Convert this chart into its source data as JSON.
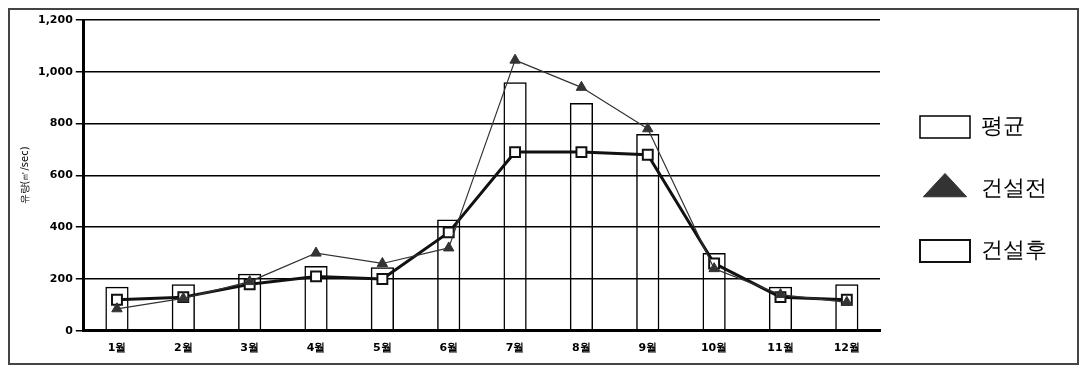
{
  "chart_data": {
    "type": "bar",
    "ylabel": "유량(㎥/sec)",
    "categories": [
      "1월",
      "2월",
      "3월",
      "4월",
      "5월",
      "6월",
      "7월",
      "8월",
      "9월",
      "10월",
      "11월",
      "12월"
    ],
    "series": [
      {
        "name": "평균",
        "color": "#000000",
        "values": [
          170,
          180,
          220,
          250,
          245,
          430,
          960,
          880,
          760,
          300,
          170,
          180
        ]
      },
      {
        "name": "건설전",
        "type": "line",
        "color": "#333333",
        "marker": "triangle",
        "values": [
          85,
          125,
          190,
          300,
          260,
          320,
          1045,
          940,
          780,
          240,
          140,
          110
        ]
      },
      {
        "name": "건설후",
        "type": "line",
        "color": "#111111",
        "marker": "square",
        "values": [
          120,
          130,
          180,
          210,
          200,
          380,
          690,
          690,
          680,
          260,
          130,
          120
        ]
      }
    ],
    "ylim": [
      0,
      1200
    ],
    "yticks": [
      {
        "value": 0,
        "label": "0"
      },
      {
        "value": 200,
        "label": "200"
      },
      {
        "value": 400,
        "label": "400"
      },
      {
        "value": 600,
        "label": "600"
      },
      {
        "value": 800,
        "label": "800"
      },
      {
        "value": 1000,
        "label": "1,000"
      },
      {
        "value": 1200,
        "label": "1,200"
      }
    ],
    "grid": "y",
    "legend": "right"
  }
}
